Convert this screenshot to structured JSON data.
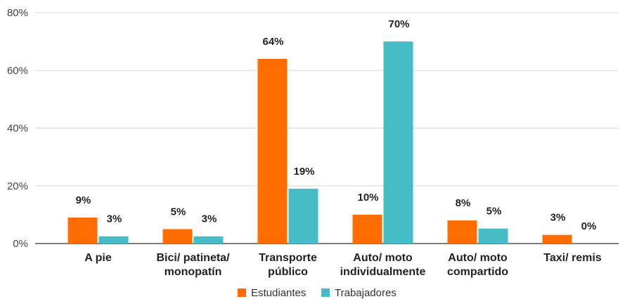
{
  "chart_data": {
    "type": "bar",
    "categories": [
      [
        "A pie"
      ],
      [
        "Bici/ patineta/",
        "monopatín"
      ],
      [
        "Transporte",
        "público"
      ],
      [
        "Auto/ moto",
        "individualmente"
      ],
      [
        "Auto/ moto",
        "compartido"
      ],
      [
        "Taxi/ remis"
      ]
    ],
    "series": [
      {
        "name": "Estudiantes",
        "color": "#ff6d01",
        "values": [
          9,
          5,
          64,
          10,
          8,
          3
        ],
        "labels": [
          "9%",
          "5%",
          "64%",
          "10%",
          "8%",
          "3%"
        ]
      },
      {
        "name": "Trabajadores",
        "color": "#46bdc6",
        "values": [
          2.5,
          2.5,
          19,
          70,
          5.2,
          0
        ],
        "labels": [
          "3%",
          "3%",
          "19%",
          "70%",
          "5%",
          "0%"
        ]
      }
    ],
    "yticks": [
      0,
      20,
      40,
      60,
      80
    ],
    "ytick_labels": [
      "0%",
      "20%",
      "40%",
      "60%",
      "80%"
    ],
    "ylim": [
      0,
      80
    ],
    "grid": true,
    "legend_position": "bottom"
  }
}
